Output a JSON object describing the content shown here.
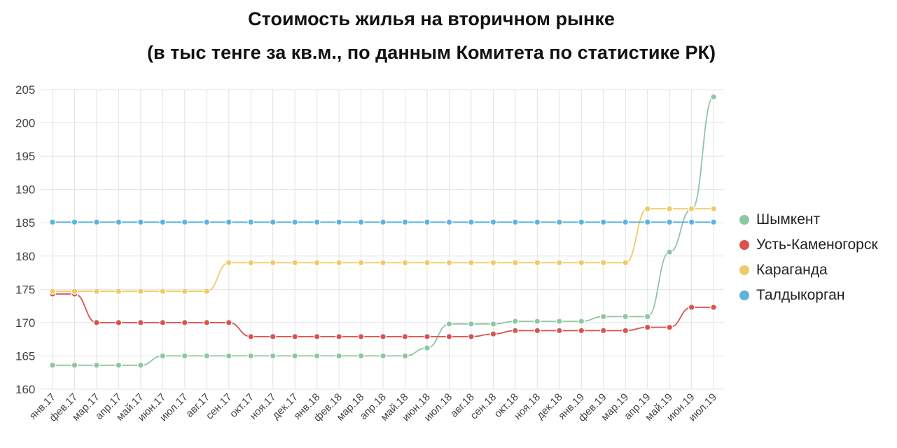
{
  "chart_data": {
    "type": "line",
    "title": "Стоимость жилья на вторичном рынке",
    "subtitle": "(в тыс тенге за кв.м., по данным Комитета по статистике РК)",
    "xlabel": "",
    "ylabel": "",
    "ylim": [
      160,
      205
    ],
    "yticks": [
      160,
      165,
      170,
      175,
      180,
      185,
      190,
      195,
      200,
      205
    ],
    "grid": true,
    "legend_position": "right",
    "categories": [
      "янв.17",
      "фев.17",
      "мар.17",
      "апр.17",
      "май.17",
      "июн.17",
      "июл.17",
      "авг.17",
      "сен.17",
      "окт.17",
      "ноя.17",
      "дек.17",
      "янв.18",
      "фев.18",
      "мар.18",
      "апр.18",
      "май.18",
      "июн.18",
      "июл.18",
      "авг.18",
      "сен.18",
      "окт.18",
      "ноя.18",
      "дек.18",
      "янв.19",
      "фев.19",
      "мар.19",
      "апр.19",
      "май.19",
      "июн.19",
      "июл.19"
    ],
    "series": [
      {
        "name": "Шымкент",
        "color": "#8ec6a4",
        "values": [
          163.6,
          163.6,
          163.6,
          163.6,
          163.6,
          165.0,
          165.0,
          165.0,
          165.0,
          165.0,
          165.0,
          165.0,
          165.0,
          165.0,
          165.0,
          165.0,
          165.0,
          166.2,
          169.8,
          169.8,
          169.8,
          170.2,
          170.2,
          170.2,
          170.2,
          170.9,
          170.9,
          170.9,
          180.6,
          187.0,
          203.9
        ]
      },
      {
        "name": "Усть-Каменогорск",
        "color": "#d9534f",
        "values": [
          174.3,
          174.3,
          170.0,
          170.0,
          170.0,
          170.0,
          170.0,
          170.0,
          170.0,
          167.9,
          167.9,
          167.9,
          167.9,
          167.9,
          167.9,
          167.9,
          167.9,
          167.9,
          167.9,
          167.9,
          168.3,
          168.8,
          168.8,
          168.8,
          168.8,
          168.8,
          168.8,
          169.3,
          169.3,
          172.3,
          172.3
        ]
      },
      {
        "name": "Караганда",
        "color": "#f0ca66",
        "values": [
          174.7,
          174.7,
          174.7,
          174.7,
          174.7,
          174.7,
          174.7,
          174.7,
          179.0,
          179.0,
          179.0,
          179.0,
          179.0,
          179.0,
          179.0,
          179.0,
          179.0,
          179.0,
          179.0,
          179.0,
          179.0,
          179.0,
          179.0,
          179.0,
          179.0,
          179.0,
          179.0,
          187.1,
          187.1,
          187.1,
          187.1
        ]
      },
      {
        "name": "Талдыкорган",
        "color": "#5bb3e0",
        "values": [
          185.1,
          185.1,
          185.1,
          185.1,
          185.1,
          185.1,
          185.1,
          185.1,
          185.1,
          185.1,
          185.1,
          185.1,
          185.1,
          185.1,
          185.1,
          185.1,
          185.1,
          185.1,
          185.1,
          185.1,
          185.1,
          185.1,
          185.1,
          185.1,
          185.1,
          185.1,
          185.1,
          185.1,
          185.1,
          185.1,
          185.1
        ]
      }
    ]
  }
}
